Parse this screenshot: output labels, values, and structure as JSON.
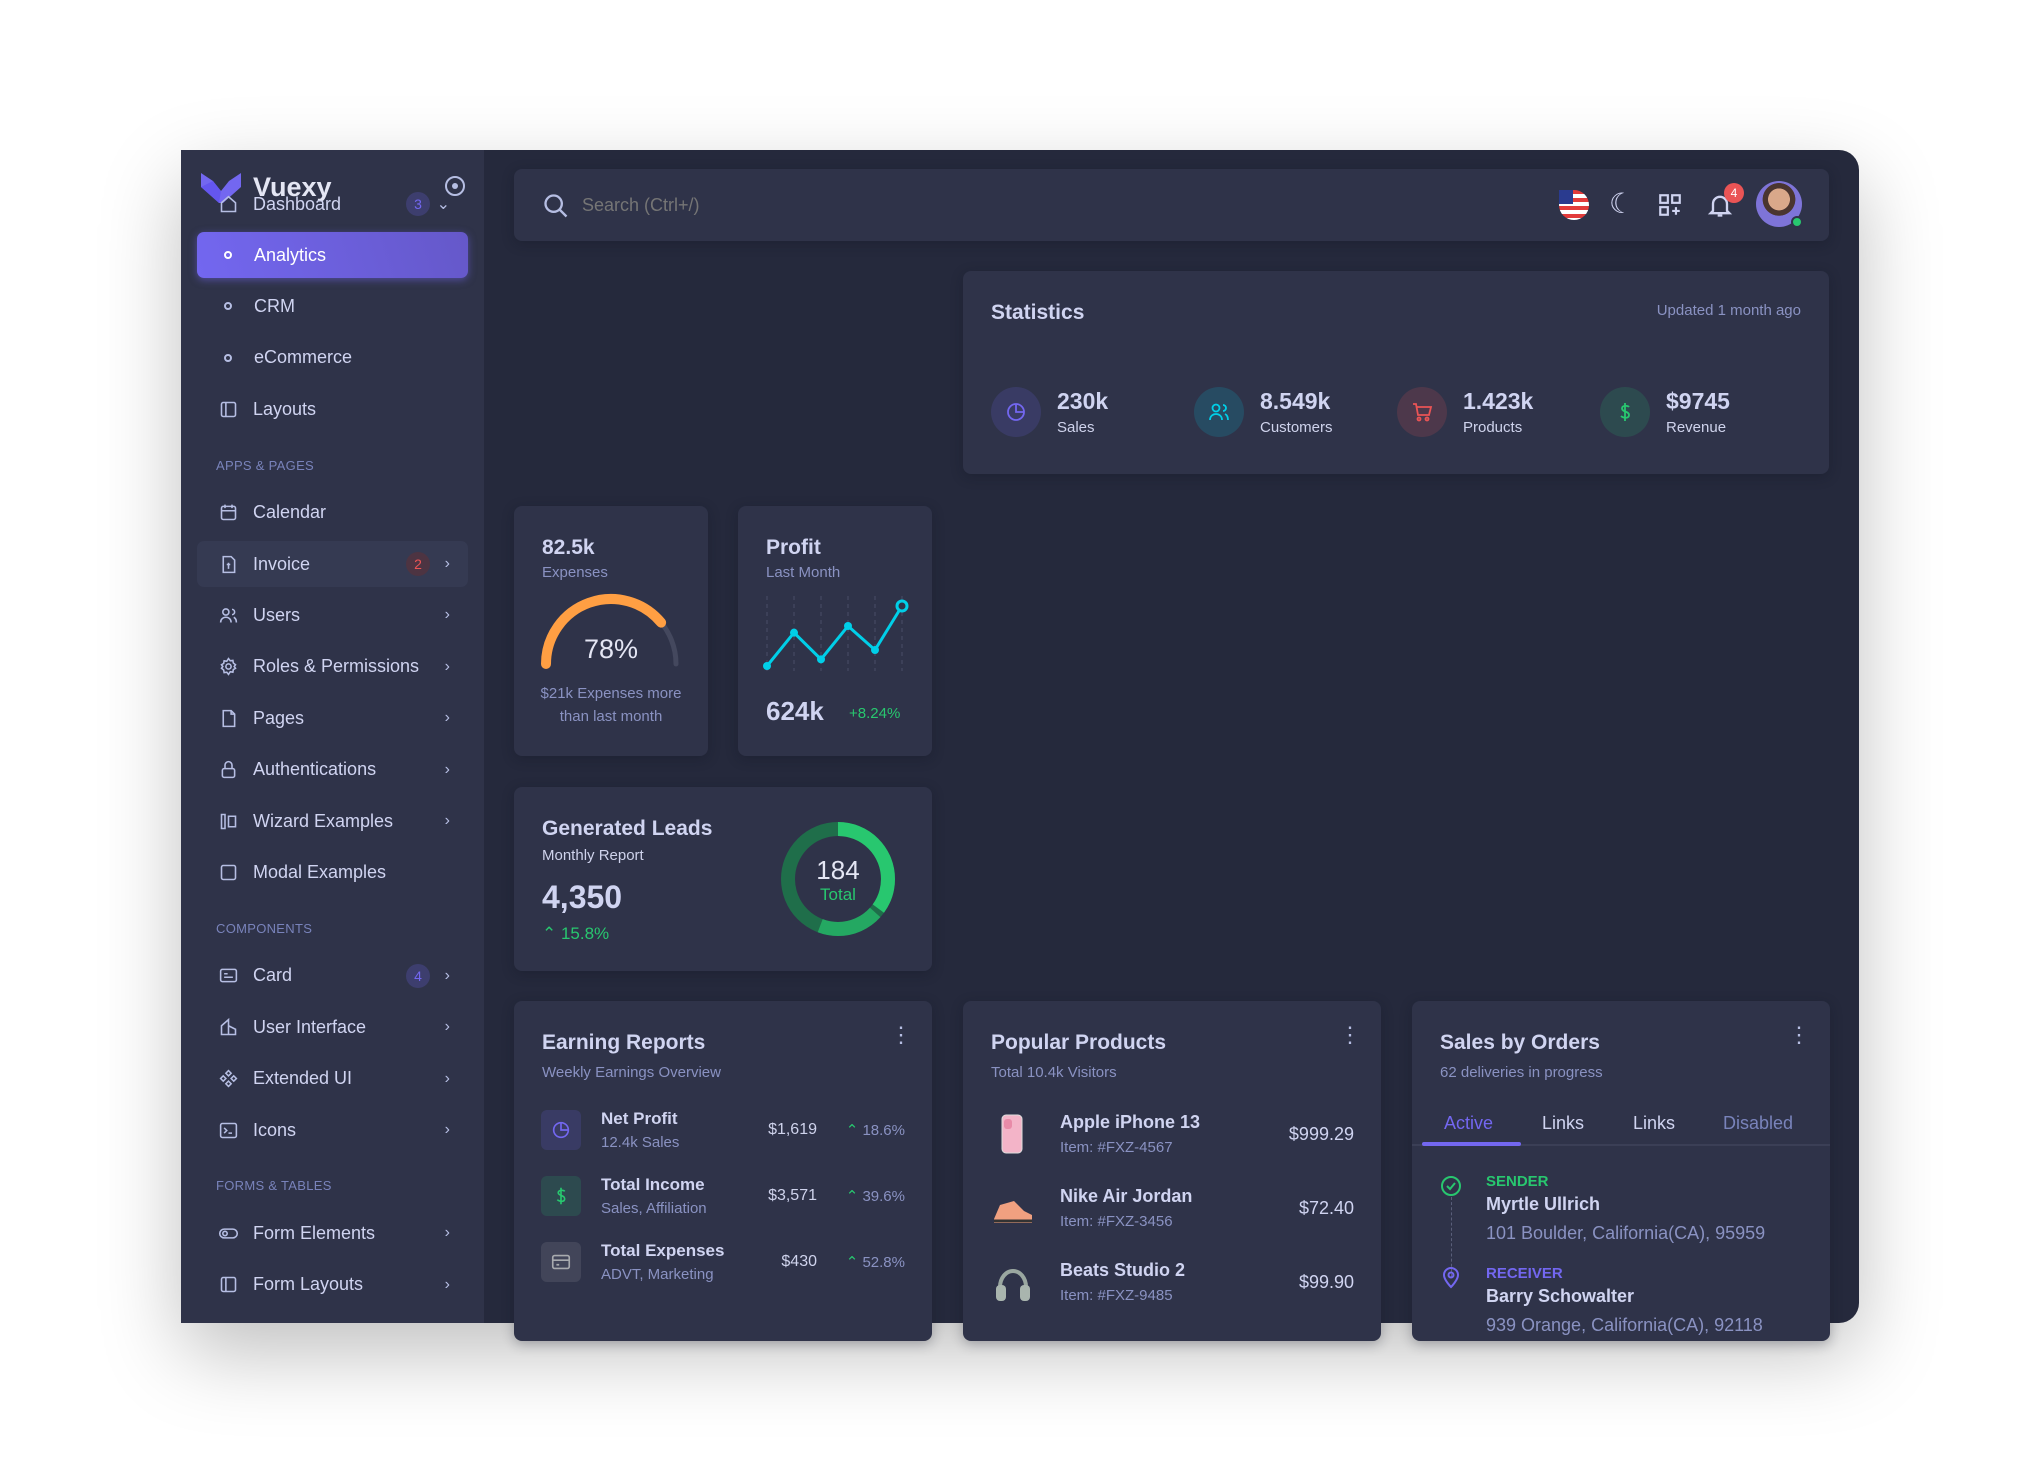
{
  "brand": {
    "name": "Vuexy"
  },
  "sidebar": {
    "dashboard": {
      "label": "Dashboard",
      "badge": "3"
    },
    "items": [
      {
        "label": "Analytics",
        "type": "sub",
        "active": true
      },
      {
        "label": "CRM",
        "type": "sub"
      },
      {
        "label": "eCommerce",
        "type": "sub"
      },
      {
        "label": "Layouts",
        "icon": "layout-icon"
      },
      {
        "section": "APPS & PAGES"
      },
      {
        "label": "Calendar",
        "icon": "calendar-icon"
      },
      {
        "label": "Invoice",
        "icon": "invoice-icon",
        "badge": "2",
        "chevron": true,
        "hl": true
      },
      {
        "label": "Users",
        "icon": "users-icon",
        "chevron": true
      },
      {
        "label": "Roles & Permissions",
        "icon": "settings-icon",
        "chevron": true
      },
      {
        "label": "Pages",
        "icon": "file-icon",
        "chevron": true
      },
      {
        "label": "Authentications",
        "icon": "lock-icon",
        "chevron": true
      },
      {
        "label": "Wizard Examples",
        "icon": "wizard-icon",
        "chevron": true
      },
      {
        "label": "Modal Examples",
        "icon": "square-icon"
      },
      {
        "section": "COMPONENTS"
      },
      {
        "label": "Card",
        "icon": "card-icon",
        "badge": "4",
        "chevron": true
      },
      {
        "label": "User Interface",
        "icon": "ui-icon",
        "chevron": true
      },
      {
        "label": "Extended UI",
        "icon": "extended-icon",
        "chevron": true
      },
      {
        "label": "Icons",
        "icon": "terminal-icon",
        "chevron": true
      },
      {
        "section": "FORMS & TABLES"
      },
      {
        "label": "Form Elements",
        "icon": "toggle-icon",
        "chevron": true
      },
      {
        "label": "Form Layouts",
        "icon": "layout-icon",
        "chevron": true
      }
    ]
  },
  "search": {
    "placeholder": "Search (Ctrl+/)"
  },
  "header": {
    "notifications": "4"
  },
  "statistics": {
    "title": "Statistics",
    "updated": "Updated 1 month ago",
    "items": [
      {
        "value": "230k",
        "label": "Sales",
        "color": "#7367f0",
        "icon": "pie-chart-icon"
      },
      {
        "value": "8.549k",
        "label": "Customers",
        "color": "#00cfe8",
        "icon": "users-icon"
      },
      {
        "value": "1.423k",
        "label": "Products",
        "color": "#ea5455",
        "icon": "cart-icon"
      },
      {
        "value": "$9745",
        "label": "Revenue",
        "color": "#28c76f",
        "icon": "dollar-icon"
      }
    ]
  },
  "expenses": {
    "value": "82.5k",
    "label": "Expenses",
    "percent": "78%",
    "percent_value": 78,
    "note": "$21k Expenses more than last month"
  },
  "profit": {
    "title": "Profit",
    "subtitle": "Last Month",
    "value": "624k",
    "change": "+8.24%",
    "series": [
      0,
      25,
      5,
      30,
      12,
      45
    ]
  },
  "leads": {
    "title": "Generated Leads",
    "subtitle": "Monthly Report",
    "value": "4,350",
    "change": "15.8%",
    "total": "184",
    "total_label": "Total"
  },
  "earning": {
    "title": "Earning Reports",
    "subtitle": "Weekly Earnings Overview",
    "rows": [
      {
        "name": "Net Profit",
        "sub": "12.4k Sales",
        "amount": "$1,619",
        "change": "18.6%",
        "icon": "pie-chart-icon",
        "color": "#7367f0"
      },
      {
        "name": "Total Income",
        "sub": "Sales, Affiliation",
        "amount": "$3,571",
        "change": "39.6%",
        "icon": "dollar-icon",
        "color": "#28c76f"
      },
      {
        "name": "Total Expenses",
        "sub": "ADVT, Marketing",
        "amount": "$430",
        "change": "52.8%",
        "icon": "credit-card-icon",
        "color": "#a8aaae"
      }
    ]
  },
  "popular": {
    "title": "Popular Products",
    "subtitle": "Total 10.4k Visitors",
    "rows": [
      {
        "name": "Apple iPhone 13",
        "item": "Item: #FXZ-4567",
        "price": "$999.29"
      },
      {
        "name": "Nike Air Jordan",
        "item": "Item: #FXZ-3456",
        "price": "$72.40"
      },
      {
        "name": "Beats Studio 2",
        "item": "Item: #FXZ-9485",
        "price": "$99.90"
      }
    ]
  },
  "orders": {
    "title": "Sales by Orders",
    "subtitle": "62 deliveries in progress",
    "tabs": [
      "Active",
      "Links",
      "Links",
      "Disabled"
    ],
    "sender": {
      "label": "SENDER",
      "name": "Myrtle Ullrich",
      "address": "101 Boulder, California(CA), 95959"
    },
    "receiver": {
      "label": "RECEIVER",
      "name": "Barry Schowalter",
      "address": "939 Orange, California(CA), 92118"
    }
  }
}
